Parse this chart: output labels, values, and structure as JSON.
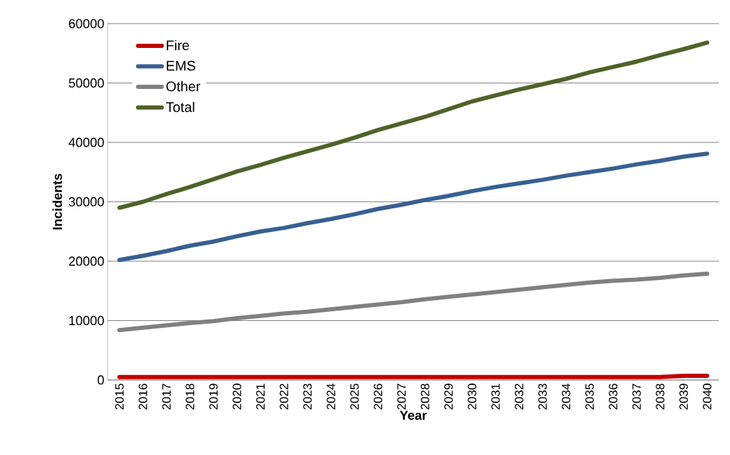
{
  "chart_data": {
    "type": "line",
    "xlabel": "Year",
    "ylabel": "Incidents",
    "categories": [
      "2015",
      "2016",
      "2017",
      "2018",
      "2019",
      "2020",
      "2021",
      "2022",
      "2023",
      "2024",
      "2025",
      "2026",
      "2027",
      "2028",
      "2029",
      "2030",
      "2031",
      "2032",
      "2033",
      "2034",
      "2035",
      "2036",
      "2037",
      "2038",
      "2039",
      "2040"
    ],
    "series": [
      {
        "name": "Fire",
        "color": "#c00000",
        "values": [
          500,
          500,
          500,
          500,
          500,
          500,
          500,
          500,
          500,
          500,
          500,
          500,
          500,
          500,
          500,
          500,
          500,
          500,
          500,
          500,
          500,
          500,
          500,
          500,
          700,
          700
        ]
      },
      {
        "name": "EMS",
        "color": "#376092",
        "values": [
          20200,
          20900,
          21700,
          22600,
          23300,
          24200,
          25000,
          25600,
          26400,
          27100,
          27900,
          28800,
          29500,
          30300,
          31000,
          31800,
          32500,
          33100,
          33700,
          34400,
          35000,
          35600,
          36300,
          36900,
          37600,
          38100
        ]
      },
      {
        "name": "Other",
        "color": "#808080",
        "values": [
          8400,
          8800,
          9200,
          9600,
          9900,
          10400,
          10800,
          11200,
          11500,
          11900,
          12300,
          12700,
          13100,
          13600,
          14000,
          14400,
          14800,
          15200,
          15600,
          16000,
          16400,
          16700,
          16900,
          17200,
          17600,
          17900
        ]
      },
      {
        "name": "Total",
        "color": "#4f6228",
        "values": [
          29000,
          30000,
          31300,
          32500,
          33800,
          35100,
          36200,
          37400,
          38500,
          39600,
          40800,
          42100,
          43200,
          44300,
          45600,
          46900,
          47900,
          48900,
          49800,
          50700,
          51800,
          52700,
          53600,
          54700,
          55700,
          56800
        ]
      }
    ],
    "ylim": [
      0,
      60000
    ],
    "yticks": [
      0,
      10000,
      20000,
      30000,
      40000,
      50000,
      60000
    ],
    "grid": "y",
    "legend": "top left",
    "marker": "none",
    "line_style": "solid"
  }
}
